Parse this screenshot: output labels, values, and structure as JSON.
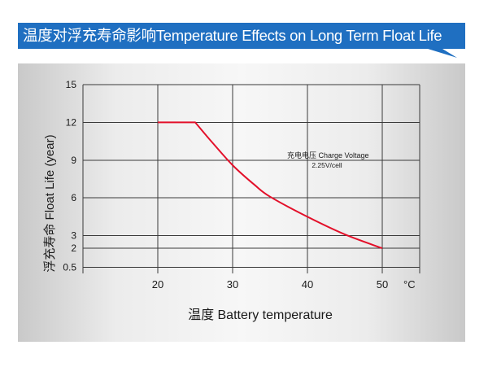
{
  "banner": {
    "title": "温度对浮充寿命影响Temperature Effects on Long Term Float Life"
  },
  "colors": {
    "banner": "#1f6fc1",
    "curve": "#e3102a",
    "grid": "#3a3a3a"
  },
  "chart_data": {
    "type": "line",
    "xlabel": "温度  Battery temperature",
    "ylabel": "浮充寿命  Float Life (year)",
    "x_unit": "°C",
    "xlim": [
      10,
      55
    ],
    "ylim": [
      0,
      15
    ],
    "x_ticks": [
      20,
      30,
      40,
      50
    ],
    "y_ticks": [
      0.5,
      2,
      3,
      6,
      9,
      12,
      15
    ],
    "grid": true,
    "annotation": {
      "line1": "充电电压 Charge Voltage",
      "line2": "2.25V/cell"
    },
    "series": [
      {
        "x": [
          20,
          25,
          27,
          30,
          33,
          35,
          40,
          45,
          50
        ],
        "y": [
          12,
          12,
          10.6,
          8.6,
          7.0,
          6.1,
          4.5,
          3.1,
          2
        ]
      }
    ]
  }
}
